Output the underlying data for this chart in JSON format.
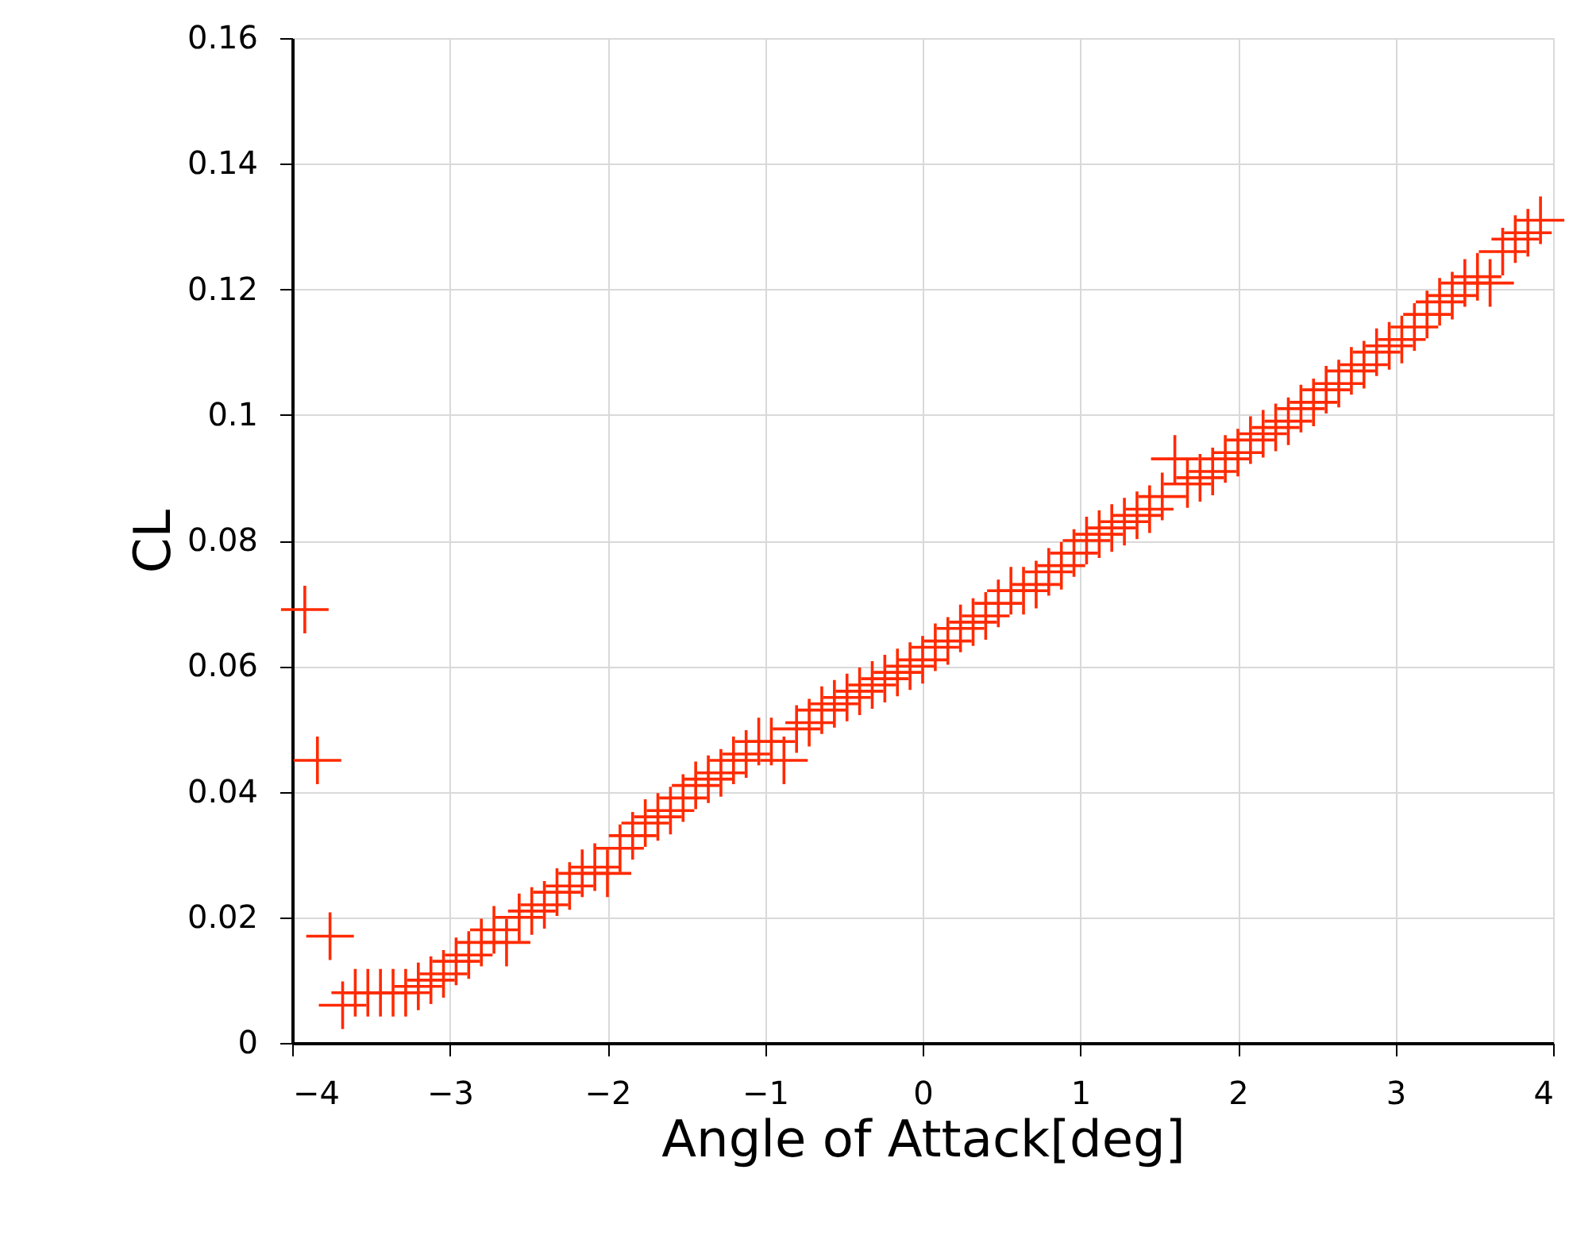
{
  "chart_data": {
    "type": "scatter",
    "xlabel": "Angle of Attack[deg]",
    "ylabel": "CL",
    "x": [
      -3.92,
      -3.84,
      -3.76,
      -3.68,
      -3.6,
      -3.52,
      -3.44,
      -3.36,
      -3.28,
      -3.2,
      -3.12,
      -3.04,
      -2.96,
      -2.88,
      -2.8,
      -2.72,
      -2.64,
      -2.56,
      -2.48,
      -2.4,
      -2.32,
      -2.24,
      -2.16,
      -2.08,
      -2.0,
      -1.92,
      -1.84,
      -1.76,
      -1.68,
      -1.6,
      -1.52,
      -1.44,
      -1.36,
      -1.28,
      -1.2,
      -1.12,
      -1.04,
      -0.96,
      -0.88,
      -0.8,
      -0.72,
      -0.64,
      -0.56,
      -0.48,
      -0.4,
      -0.32,
      -0.24,
      -0.16,
      -0.08,
      0.0,
      0.08,
      0.16,
      0.24,
      0.32,
      0.4,
      0.48,
      0.56,
      0.64,
      0.72,
      0.8,
      0.88,
      0.96,
      1.04,
      1.12,
      1.2,
      1.28,
      1.36,
      1.44,
      1.52,
      1.6,
      1.68,
      1.76,
      1.84,
      1.92,
      2.0,
      2.08,
      2.16,
      2.24,
      2.32,
      2.4,
      2.48,
      2.56,
      2.64,
      2.72,
      2.8,
      2.88,
      2.96,
      3.04,
      3.12,
      3.2,
      3.28,
      3.36,
      3.44,
      3.52,
      3.6,
      3.68,
      3.76,
      3.84,
      3.92
    ],
    "series": [
      {
        "color": "#ff2a00",
        "values": [
          0.069,
          0.045,
          0.017,
          0.006,
          0.008,
          0.008,
          0.008,
          0.008,
          0.008,
          0.009,
          0.01,
          0.011,
          0.013,
          0.014,
          0.016,
          0.018,
          0.016,
          0.02,
          0.021,
          0.022,
          0.024,
          0.025,
          0.027,
          0.028,
          0.027,
          0.031,
          0.033,
          0.035,
          0.036,
          0.037,
          0.039,
          0.041,
          0.042,
          0.043,
          0.045,
          0.046,
          0.048,
          0.048,
          0.045,
          0.05,
          0.051,
          0.053,
          0.054,
          0.055,
          0.056,
          0.057,
          0.058,
          0.059,
          0.06,
          0.061,
          0.063,
          0.064,
          0.066,
          0.067,
          0.068,
          0.07,
          0.072,
          0.072,
          0.073,
          0.075,
          0.076,
          0.078,
          0.08,
          0.081,
          0.082,
          0.083,
          0.084,
          0.085,
          0.087,
          0.093,
          0.089,
          0.09,
          0.091,
          0.093,
          0.094,
          0.096,
          0.097,
          0.098,
          0.099,
          0.101,
          0.102,
          0.104,
          0.105,
          0.107,
          0.108,
          0.11,
          0.111,
          0.112,
          0.114,
          0.116,
          0.118,
          0.119,
          0.121,
          0.122,
          0.121,
          0.126,
          0.128,
          0.129,
          0.131
        ]
      }
    ],
    "xlim": [
      -4,
      4
    ],
    "xticks": [
      -4,
      -3,
      -2,
      -1,
      0,
      1,
      2,
      3,
      4
    ],
    "ylim": [
      0,
      0.16
    ],
    "yticks": [
      0,
      0.02,
      0.04,
      0.06,
      0.08,
      0.1,
      0.12,
      0.14,
      0.16
    ],
    "grid": true,
    "marker": "cross"
  }
}
